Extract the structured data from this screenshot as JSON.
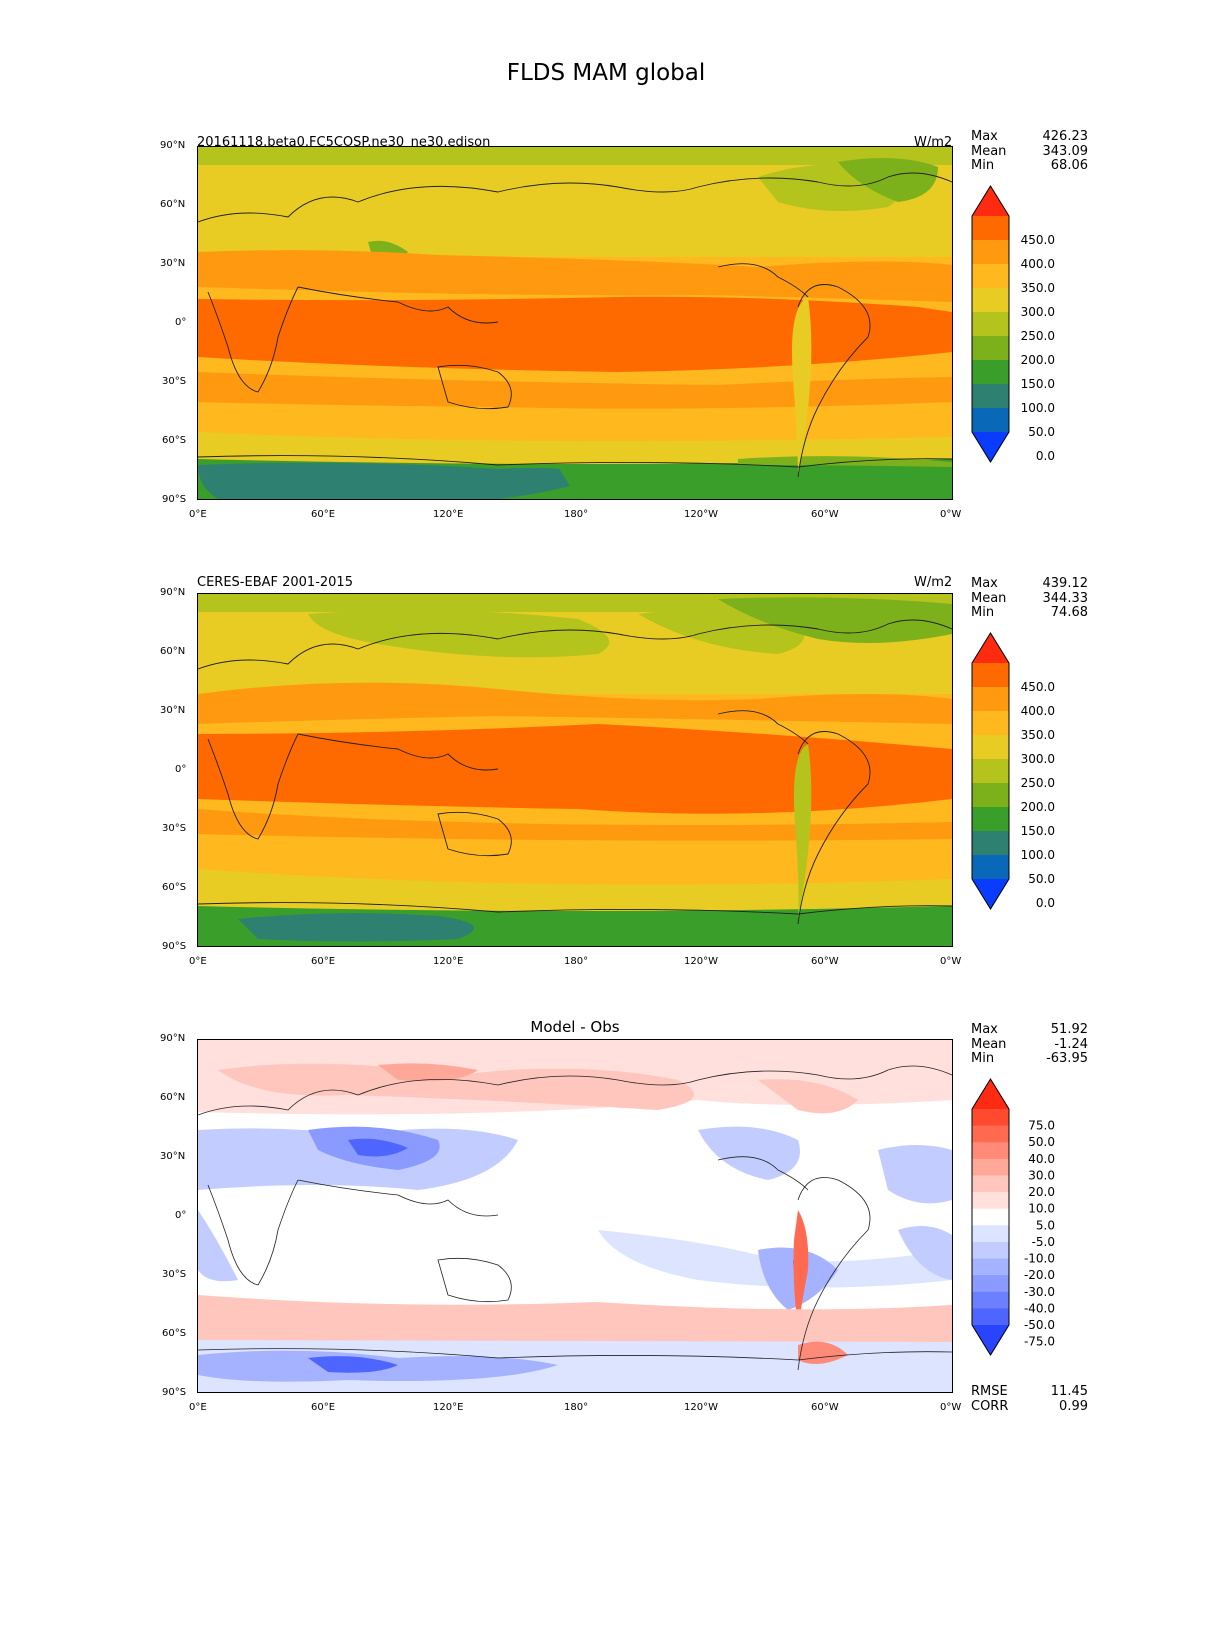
{
  "figure": {
    "title": "FLDS MAM global",
    "lat_ticks": [
      "90°N",
      "60°N",
      "30°N",
      "0°",
      "30°S",
      "60°S",
      "90°S"
    ],
    "lon_ticks": [
      "0°E",
      "60°E",
      "120°E",
      "180°",
      "120°W",
      "60°W",
      "0°W"
    ],
    "stat_labels": {
      "max": "Max",
      "mean": "Mean",
      "min": "Min",
      "rmse": "RMSE",
      "corr": "CORR"
    },
    "colormaps": {
      "abs_levels": [
        "450.0",
        "400.0",
        "350.0",
        "300.0",
        "250.0",
        "200.0",
        "150.0",
        "100.0",
        "50.0",
        "0.0"
      ],
      "abs_colors": [
        "#ff2b10",
        "#ff6a00",
        "#ff9a10",
        "#ffb81e",
        "#e8cc24",
        "#b4c41c",
        "#7cb11c",
        "#3a9e2a",
        "#2e8070",
        "#0a68b8",
        "#0a3cff"
      ],
      "diff_levels": [
        "75.0",
        "50.0",
        "40.0",
        "30.0",
        "20.0",
        "10.0",
        "5.0",
        "-5.0",
        "-10.0",
        "-20.0",
        "-30.0",
        "-40.0",
        "-50.0",
        "-75.0"
      ],
      "diff_colors": [
        "#ff2a12",
        "#ff4a30",
        "#ff6a50",
        "#ff8a78",
        "#ffa89a",
        "#ffc6be",
        "#ffe0dc",
        "#ffffff",
        "#dde4ff",
        "#c2ccff",
        "#a4b2ff",
        "#8a9aff",
        "#6c80ff",
        "#4e66ff",
        "#2844ff"
      ]
    }
  },
  "panels": [
    {
      "left_title": "20161118.beta0.FC5COSP.ne30_ne30.edison",
      "center_title": "",
      "units": "W/m2",
      "stats": {
        "max": "426.23",
        "mean": "343.09",
        "min": "68.06"
      }
    },
    {
      "left_title": "CERES-EBAF 2001-2015",
      "center_title": "",
      "units": "W/m2",
      "stats": {
        "max": "439.12",
        "mean": "344.33",
        "min": "74.68"
      }
    },
    {
      "left_title": "",
      "center_title": "Model - Obs",
      "units": "",
      "stats": {
        "max": "51.92",
        "mean": "-1.24",
        "min": "-63.95",
        "rmse": "11.45",
        "corr": "0.99"
      }
    }
  ]
}
